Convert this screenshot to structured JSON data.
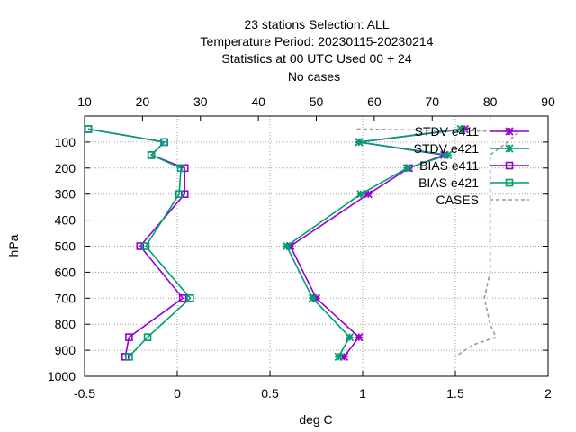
{
  "chart_data": {
    "type": "line",
    "title_lines": [
      "23 stations Selection: ALL",
      "Temperature  Period: 20230115-20230214",
      "Statistics at 00 UTC  Used  00  + 24",
      "No cases"
    ],
    "xlabel": "deg C",
    "ylabel": "hPa",
    "xlim": [
      -0.5,
      2
    ],
    "ylim": [
      1000,
      0
    ],
    "x_ticks": [
      "-0.5",
      "0",
      "0.5",
      "1",
      "1.5",
      "2"
    ],
    "y_ticks": [
      "100",
      "200",
      "300",
      "400",
      "500",
      "600",
      "700",
      "800",
      "900",
      "1000"
    ],
    "x2lim": [
      10,
      90
    ],
    "x2_ticks": [
      "10",
      "20",
      "30",
      "40",
      "50",
      "60",
      "70",
      "80",
      "90"
    ],
    "grid": true,
    "legend_position": "top-right",
    "series": [
      {
        "name": "STDV e411",
        "color": "#9400d3",
        "marker": "star",
        "axis": "bottom",
        "points": [
          [
            1.55,
            50
          ],
          [
            0.98,
            100
          ],
          [
            1.44,
            150
          ],
          [
            1.25,
            200
          ],
          [
            1.03,
            300
          ],
          [
            0.61,
            500
          ],
          [
            0.75,
            700
          ],
          [
            0.98,
            850
          ],
          [
            0.9,
            925
          ]
        ]
      },
      {
        "name": "STDV e421",
        "color": "#009e73",
        "marker": "star",
        "axis": "bottom",
        "points": [
          [
            1.53,
            50
          ],
          [
            0.98,
            100
          ],
          [
            1.46,
            150
          ],
          [
            1.24,
            200
          ],
          [
            0.99,
            300
          ],
          [
            0.59,
            500
          ],
          [
            0.73,
            700
          ],
          [
            0.93,
            850
          ],
          [
            0.87,
            925
          ]
        ]
      },
      {
        "name": "BIAS e411",
        "color": "#9400d3",
        "marker": "square",
        "axis": "bottom",
        "points": [
          [
            -0.48,
            50
          ],
          [
            -0.07,
            100
          ],
          [
            -0.14,
            150
          ],
          [
            0.04,
            200
          ],
          [
            0.04,
            300
          ],
          [
            -0.2,
            500
          ],
          [
            0.03,
            700
          ],
          [
            -0.26,
            850
          ],
          [
            -0.28,
            925
          ]
        ]
      },
      {
        "name": "BIAS e421",
        "color": "#009e73",
        "marker": "square",
        "axis": "bottom",
        "points": [
          [
            -0.48,
            50
          ],
          [
            -0.07,
            100
          ],
          [
            -0.14,
            150
          ],
          [
            0.02,
            200
          ],
          [
            0.01,
            300
          ],
          [
            -0.17,
            500
          ],
          [
            0.07,
            700
          ],
          [
            -0.16,
            850
          ],
          [
            -0.26,
            925
          ]
        ]
      },
      {
        "name": "CASES",
        "color": "#999999",
        "marker": "none",
        "dashed": true,
        "axis": "top",
        "points": [
          [
            57,
            50
          ],
          [
            85,
            60
          ],
          [
            83,
            100
          ],
          [
            80,
            150
          ],
          [
            80,
            200
          ],
          [
            80,
            300
          ],
          [
            80,
            500
          ],
          [
            80,
            600
          ],
          [
            79,
            700
          ],
          [
            80,
            800
          ],
          [
            81,
            850
          ],
          [
            77,
            880
          ],
          [
            74,
            925
          ]
        ]
      }
    ]
  }
}
